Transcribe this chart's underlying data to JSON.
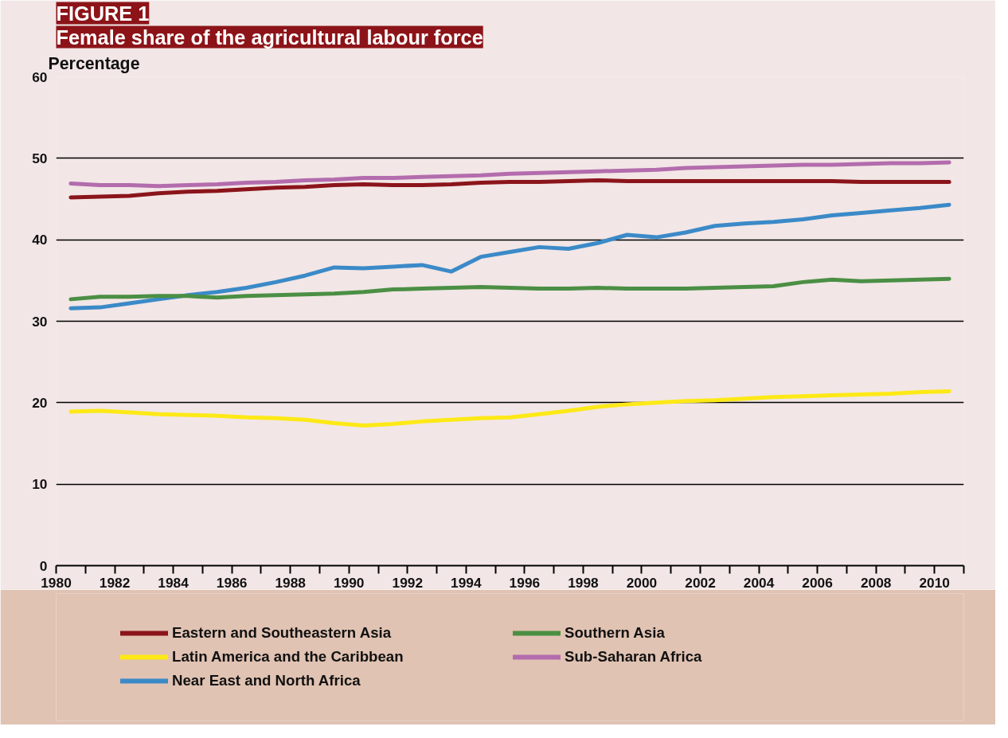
{
  "chart_data": {
    "type": "line",
    "title": "FIGURE 1",
    "subtitle": "Female share of the agricultural labour force",
    "ylabel": "Percentage",
    "x": [
      1980.5,
      1981.5,
      1982.5,
      1983.5,
      1984.5,
      1985.5,
      1986.5,
      1987.5,
      1988.5,
      1989.5,
      1990.5,
      1991.5,
      1992.5,
      1993.5,
      1994.5,
      1995.5,
      1996.5,
      1997.5,
      1998.5,
      1999.5,
      2000.5,
      2001.5,
      2002.5,
      2003.5,
      2004.5,
      2005.5,
      2006.5,
      2007.5,
      2008.5,
      2009.5,
      2010.5
    ],
    "series": [
      {
        "name": "Eastern and Southeastern Asia",
        "color": "#8b141b",
        "values": [
          45.2,
          45.3,
          45.4,
          45.7,
          45.9,
          46.0,
          46.2,
          46.4,
          46.5,
          46.7,
          46.8,
          46.7,
          46.7,
          46.8,
          47.0,
          47.1,
          47.1,
          47.2,
          47.3,
          47.2,
          47.2,
          47.2,
          47.2,
          47.2,
          47.2,
          47.2,
          47.2,
          47.1,
          47.1,
          47.1,
          47.1
        ]
      },
      {
        "name": "Latin America and the Caribbean",
        "color": "#fde916",
        "values": [
          18.9,
          19.0,
          18.8,
          18.6,
          18.5,
          18.4,
          18.2,
          18.1,
          17.9,
          17.5,
          17.2,
          17.4,
          17.7,
          17.9,
          18.1,
          18.2,
          18.6,
          19.0,
          19.5,
          19.8,
          20.0,
          20.2,
          20.3,
          20.5,
          20.7,
          20.8,
          20.9,
          21.0,
          21.1,
          21.3,
          21.4
        ]
      },
      {
        "name": "Near East and North Africa",
        "color": "#3b8ac8",
        "values": [
          31.6,
          31.7,
          32.2,
          32.7,
          33.2,
          33.6,
          34.1,
          34.8,
          35.6,
          36.6,
          36.5,
          36.7,
          36.9,
          36.1,
          37.9,
          38.5,
          39.1,
          38.9,
          39.6,
          40.6,
          40.3,
          40.9,
          41.7,
          42.0,
          42.2,
          42.5,
          43.0,
          43.3,
          43.6,
          43.9,
          44.3
        ]
      },
      {
        "name": "Southern Asia",
        "color": "#4b8f44",
        "values": [
          32.7,
          33.0,
          33.0,
          33.1,
          33.1,
          32.9,
          33.1,
          33.2,
          33.3,
          33.4,
          33.6,
          33.9,
          34.0,
          34.1,
          34.2,
          34.1,
          34.0,
          34.0,
          34.1,
          34.0,
          34.0,
          34.0,
          34.1,
          34.2,
          34.3,
          34.8,
          35.1,
          34.9,
          35.0,
          35.1,
          35.2
        ]
      },
      {
        "name": "Sub-Saharan Africa",
        "color": "#b36cad",
        "values": [
          46.9,
          46.7,
          46.7,
          46.6,
          46.7,
          46.8,
          47.0,
          47.1,
          47.3,
          47.4,
          47.6,
          47.6,
          47.7,
          47.8,
          47.9,
          48.1,
          48.2,
          48.3,
          48.4,
          48.5,
          48.6,
          48.8,
          48.9,
          49.0,
          49.1,
          49.2,
          49.2,
          49.3,
          49.4,
          49.4,
          49.5
        ]
      }
    ],
    "xlim": [
      1980,
      2011
    ],
    "xticks": [
      1980,
      {
        "value": 1981,
        "label": null
      },
      1982,
      {
        "value": 1983,
        "label": null
      },
      1984,
      {
        "value": 1985,
        "label": null
      },
      1986,
      {
        "value": 1987,
        "label": null
      },
      1988,
      {
        "value": 1989,
        "label": null
      },
      1990,
      {
        "value": 1991,
        "label": null
      },
      1992,
      {
        "value": 1993,
        "label": null
      },
      1994,
      {
        "value": 1995,
        "label": null
      },
      1996,
      {
        "value": 1997,
        "label": null
      },
      1998,
      {
        "value": 1999,
        "label": null
      },
      2000,
      {
        "value": 2001,
        "label": null
      },
      2002,
      {
        "value": 2003,
        "label": null
      },
      2004,
      {
        "value": 2005,
        "label": null
      },
      2006,
      {
        "value": 2007,
        "label": null
      },
      2008,
      {
        "value": 2009,
        "label": null
      },
      2010,
      {
        "value": 2011,
        "label": null
      }
    ],
    "ylim": [
      0,
      60
    ],
    "yticks": [
      0,
      10,
      20,
      30,
      40,
      50,
      60
    ],
    "grid": "y",
    "legend": "bottom",
    "marker": "none",
    "line_style": "solid"
  }
}
